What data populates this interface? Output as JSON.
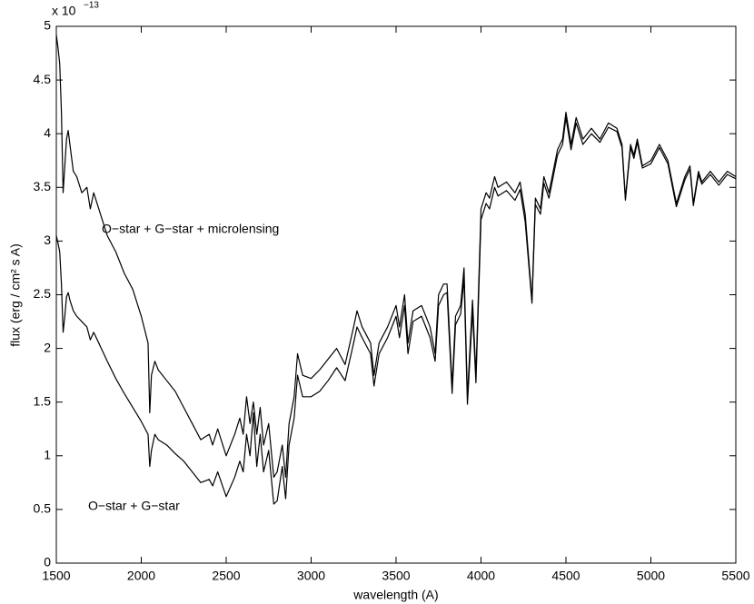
{
  "chart_data": {
    "type": "line",
    "xlabel": "wavelength (A)",
    "ylabel": "flux (erg / cm² s A)",
    "y_scale_base": "x 10",
    "y_scale_exponent": "−13",
    "x": [
      1500,
      1510,
      1520,
      1530,
      1540,
      1550,
      1560,
      1570,
      1580,
      1600,
      1620,
      1650,
      1680,
      1700,
      1720,
      1750,
      1800,
      1850,
      1900,
      1950,
      2000,
      2040,
      2050,
      2060,
      2080,
      2100,
      2150,
      2200,
      2250,
      2300,
      2350,
      2400,
      2420,
      2450,
      2500,
      2550,
      2580,
      2600,
      2620,
      2640,
      2660,
      2680,
      2700,
      2720,
      2750,
      2780,
      2800,
      2830,
      2850,
      2870,
      2900,
      2920,
      2950,
      3000,
      3050,
      3100,
      3150,
      3200,
      3250,
      3270,
      3300,
      3350,
      3370,
      3400,
      3450,
      3500,
      3520,
      3550,
      3570,
      3600,
      3650,
      3700,
      3730,
      3750,
      3780,
      3800,
      3830,
      3850,
      3880,
      3900,
      3920,
      3950,
      3970,
      4000,
      4030,
      4050,
      4080,
      4100,
      4150,
      4200,
      4230,
      4260,
      4300,
      4320,
      4350,
      4370,
      4400,
      4450,
      4480,
      4500,
      4530,
      4560,
      4600,
      4650,
      4700,
      4750,
      4800,
      4830,
      4850,
      4880,
      4900,
      4920,
      4950,
      5000,
      5050,
      5100,
      5150,
      5200,
      5230,
      5250,
      5280,
      5300,
      5350,
      5400,
      5450,
      5500
    ],
    "series": [
      {
        "name": "O−star + G−star + microlensing",
        "color": "#000000",
        "values": [
          4.92,
          4.8,
          4.65,
          4.2,
          3.45,
          3.7,
          3.95,
          4.03,
          3.9,
          3.65,
          3.6,
          3.45,
          3.5,
          3.3,
          3.45,
          3.3,
          3.05,
          2.9,
          2.7,
          2.55,
          2.3,
          2.05,
          1.4,
          1.75,
          1.88,
          1.8,
          1.7,
          1.6,
          1.45,
          1.3,
          1.15,
          1.2,
          1.1,
          1.25,
          1.0,
          1.2,
          1.35,
          1.2,
          1.55,
          1.3,
          1.5,
          1.2,
          1.45,
          1.1,
          1.3,
          0.8,
          0.85,
          1.1,
          0.8,
          1.3,
          1.55,
          1.95,
          1.75,
          1.72,
          1.8,
          1.9,
          2.0,
          1.85,
          2.2,
          2.35,
          2.2,
          2.05,
          1.75,
          2.05,
          2.2,
          2.4,
          2.2,
          2.5,
          2.05,
          2.35,
          2.4,
          2.2,
          1.95,
          2.5,
          2.6,
          2.6,
          1.65,
          2.3,
          2.4,
          2.75,
          1.55,
          2.45,
          1.75,
          3.3,
          3.45,
          3.4,
          3.6,
          3.5,
          3.55,
          3.45,
          3.55,
          3.25,
          2.45,
          3.4,
          3.3,
          3.6,
          3.45,
          3.85,
          3.95,
          4.2,
          3.9,
          4.15,
          3.95,
          4.05,
          3.95,
          4.1,
          4.05,
          3.9,
          3.4,
          3.9,
          3.8,
          3.95,
          3.7,
          3.75,
          3.9,
          3.75,
          3.35,
          3.6,
          3.7,
          3.35,
          3.65,
          3.55,
          3.65,
          3.55,
          3.65,
          3.6
        ]
      },
      {
        "name": "O−star + G−star",
        "color": "#000000",
        "values": [
          3.05,
          2.98,
          2.9,
          2.6,
          2.15,
          2.3,
          2.48,
          2.52,
          2.45,
          2.35,
          2.3,
          2.25,
          2.2,
          2.08,
          2.15,
          2.05,
          1.88,
          1.72,
          1.58,
          1.45,
          1.32,
          1.2,
          0.9,
          1.05,
          1.2,
          1.15,
          1.1,
          1.02,
          0.95,
          0.85,
          0.75,
          0.78,
          0.72,
          0.85,
          0.62,
          0.8,
          0.95,
          0.85,
          1.2,
          1.0,
          1.4,
          0.9,
          1.2,
          0.85,
          1.05,
          0.55,
          0.58,
          0.9,
          0.6,
          1.1,
          1.35,
          1.75,
          1.55,
          1.55,
          1.6,
          1.7,
          1.82,
          1.7,
          2.05,
          2.2,
          2.1,
          1.95,
          1.65,
          1.95,
          2.1,
          2.3,
          2.1,
          2.4,
          1.95,
          2.25,
          2.3,
          2.1,
          1.88,
          2.4,
          2.5,
          2.52,
          1.58,
          2.22,
          2.32,
          2.65,
          1.48,
          2.35,
          1.68,
          3.2,
          3.35,
          3.3,
          3.5,
          3.42,
          3.47,
          3.38,
          3.48,
          3.18,
          2.42,
          3.34,
          3.25,
          3.54,
          3.4,
          3.8,
          3.9,
          4.15,
          3.85,
          4.1,
          3.9,
          4.0,
          3.92,
          4.06,
          4.02,
          3.87,
          3.38,
          3.87,
          3.77,
          3.92,
          3.68,
          3.72,
          3.87,
          3.72,
          3.32,
          3.57,
          3.67,
          3.33,
          3.62,
          3.53,
          3.62,
          3.52,
          3.62,
          3.58
        ]
      }
    ],
    "xlim": [
      1500,
      5500
    ],
    "xticks": [
      1500,
      2000,
      2500,
      3000,
      3500,
      4000,
      4500,
      5000,
      5500
    ],
    "ylim": [
      0,
      5
    ],
    "yticks": [
      0,
      0.5,
      1,
      1.5,
      2,
      2.5,
      3,
      3.5,
      4,
      4.5,
      5
    ],
    "grid": false
  }
}
